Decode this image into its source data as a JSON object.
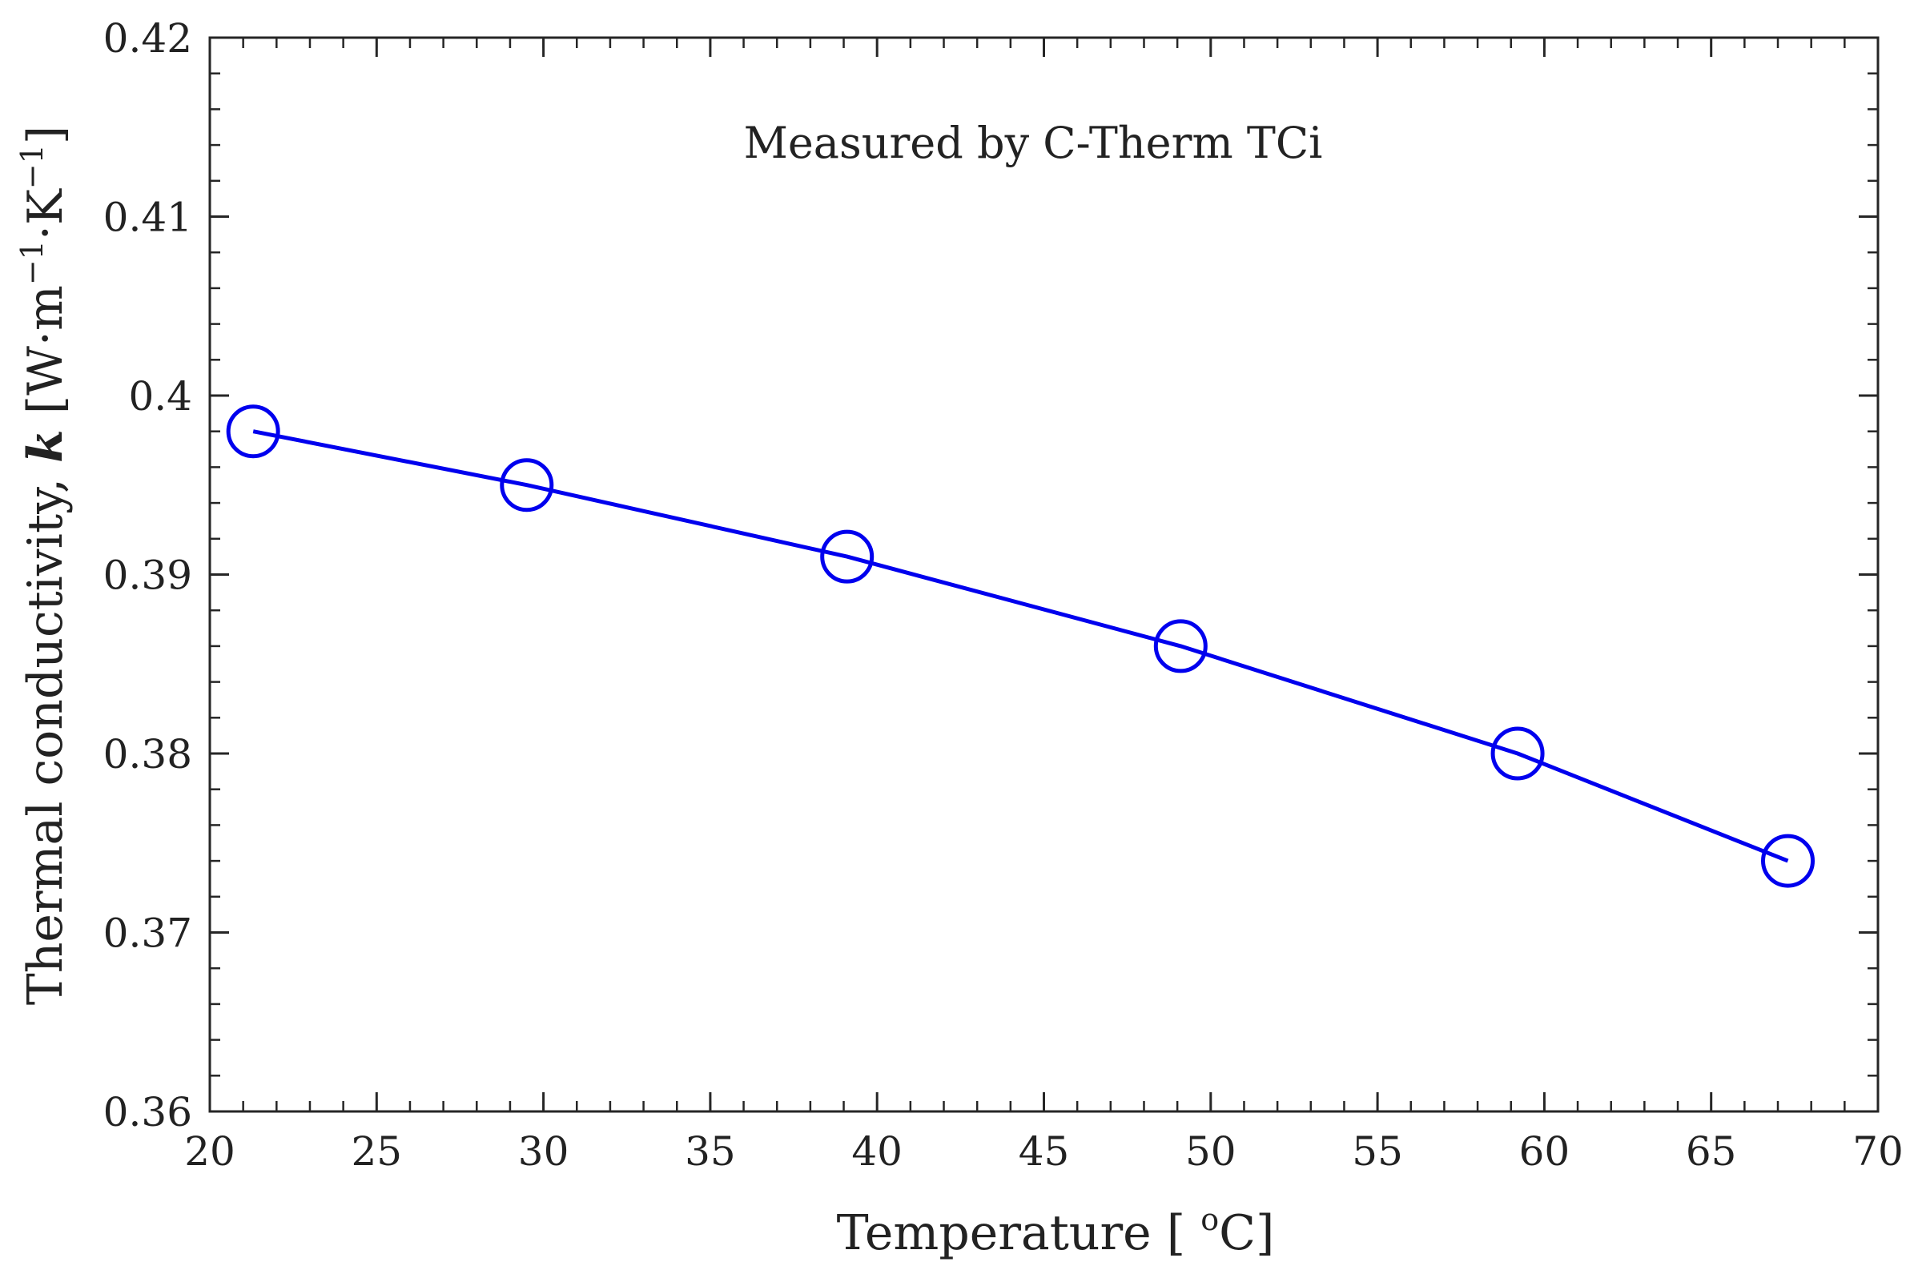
{
  "chart_data": {
    "type": "line",
    "annotation": "Measured by C-Therm TCi",
    "xlabel": {
      "main": "Temperature [ ",
      "sup": "o",
      "unit": "C]"
    },
    "ylabel": {
      "main": "Thermal conductivity, ",
      "symbol": "k",
      "open": " [W·m",
      "exp1": "−1",
      "mid": "·K",
      "exp2": "−1",
      "close": "]"
    },
    "xlim": [
      20,
      70
    ],
    "ylim": [
      0.36,
      0.42
    ],
    "x_ticks": [
      20,
      25,
      30,
      35,
      40,
      45,
      50,
      55,
      60,
      65,
      70
    ],
    "x_tick_labels": [
      "20",
      "25",
      "30",
      "35",
      "40",
      "45",
      "50",
      "55",
      "60",
      "65",
      "70"
    ],
    "y_ticks": [
      0.36,
      0.37,
      0.38,
      0.39,
      0.4,
      0.41,
      0.42
    ],
    "y_tick_labels": [
      "0.36",
      "0.37",
      "0.38",
      "0.39",
      "0.4",
      "0.41",
      "0.42"
    ],
    "x_minor_step": 1,
    "y_minor_step": 0.002,
    "series": [
      {
        "name": "k",
        "color": "#0000EE",
        "marker": "circle-open",
        "x": [
          21.3,
          29.5,
          39.1,
          49.1,
          59.2,
          67.3
        ],
        "y": [
          0.398,
          0.395,
          0.391,
          0.386,
          0.38,
          0.374
        ]
      }
    ],
    "grid": false,
    "box": true
  }
}
